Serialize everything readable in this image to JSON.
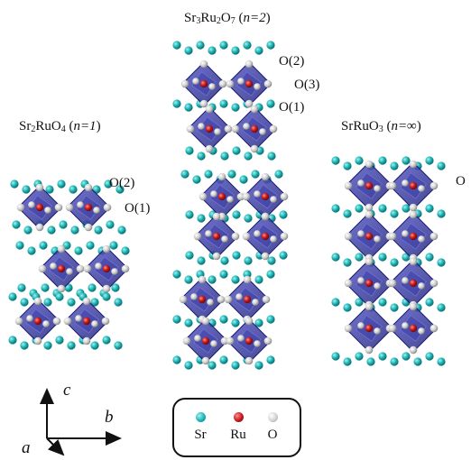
{
  "structures": [
    {
      "formula_parts": [
        "Sr",
        "2",
        "RuO",
        "4"
      ],
      "n_label": "n=1",
      "site_labels": [
        "O(2)",
        "O(1)"
      ]
    },
    {
      "formula_parts": [
        "Sr",
        "3",
        "Ru",
        "2",
        "O",
        "7"
      ],
      "n_label": "n=2",
      "site_labels": [
        "O(2)",
        "O(3)",
        "O(1)"
      ]
    },
    {
      "formula_parts": [
        "SrRuO",
        "3",
        "",
        "",
        "",
        ""
      ],
      "n_label": "n=∞",
      "site_labels": [
        "O"
      ]
    }
  ],
  "legend": {
    "items": [
      {
        "label": "Sr",
        "color": "#1fb3b3"
      },
      {
        "label": "Ru",
        "color": "#c0191c"
      },
      {
        "label": "O",
        "color": "#cfcfcf"
      }
    ]
  },
  "axes": {
    "c": "c",
    "b": "b",
    "a": "a"
  },
  "colors": {
    "octahedron": "#2d2f99",
    "octahedron_edge": "#1a1c6e"
  }
}
